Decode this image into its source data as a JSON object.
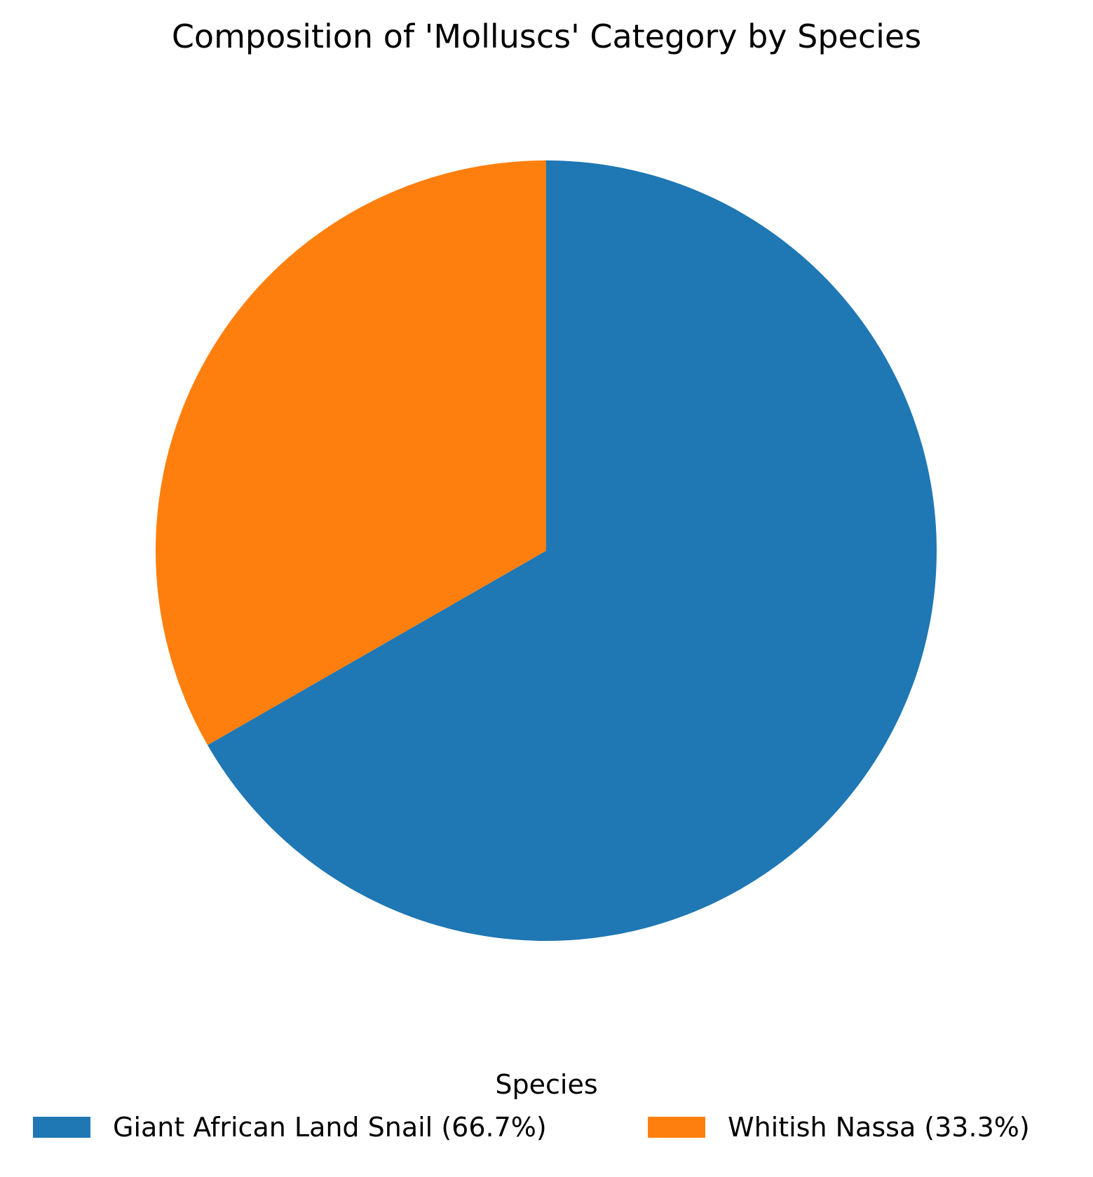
{
  "chart_data": {
    "type": "pie",
    "title": "Composition of 'Molluscs' Category by Species",
    "categories": [
      "Giant African Land Snail",
      "Whitish Nassa"
    ],
    "values": [
      66.7,
      33.3
    ],
    "colors": [
      "#1f77b4",
      "#ff7f0e"
    ],
    "start_angle_deg": 90,
    "direction": "clockwise",
    "legend": {
      "title": "Species",
      "placement": "bottom-center",
      "entries": [
        "Giant African Land Snail (66.7%)",
        "Whitish Nassa (33.3%)"
      ]
    }
  }
}
